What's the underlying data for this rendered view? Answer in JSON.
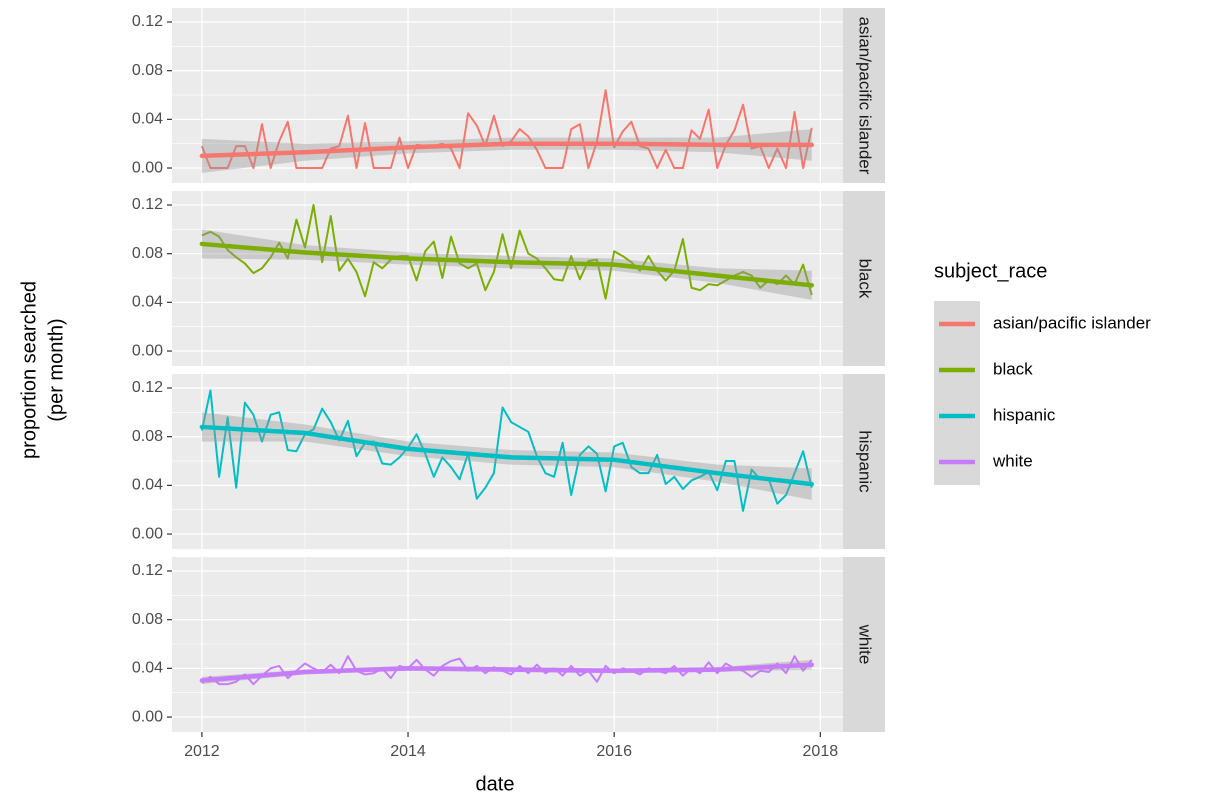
{
  "chart_data": {
    "type": "line",
    "xlabel": "date",
    "ylabel": [
      "proportion searched",
      "(per month)"
    ],
    "legend_title": "subject_race",
    "xlim": [
      2011.71,
      2018.22
    ],
    "xticks": [
      2012,
      2014,
      2016,
      2018
    ],
    "minor_xticks": [
      2013,
      2015,
      2017
    ],
    "ylim": [
      -0.0123,
      0.1315
    ],
    "yticks": [
      {
        "value": 0,
        "label": "0.00"
      },
      0.04,
      0.08,
      0.12
    ],
    "minor_yticks": [
      0.02,
      0.06,
      0.1
    ],
    "grid": true,
    "band_color": "#999999",
    "x": [
      2012,
      2012.083,
      2012.167,
      2012.25,
      2012.333,
      2012.417,
      2012.5,
      2012.583,
      2012.667,
      2012.75,
      2012.833,
      2012.917,
      2013,
      2013.083,
      2013.167,
      2013.25,
      2013.333,
      2013.417,
      2013.5,
      2013.583,
      2013.667,
      2013.75,
      2013.833,
      2013.917,
      2014,
      2014.083,
      2014.167,
      2014.25,
      2014.333,
      2014.417,
      2014.5,
      2014.583,
      2014.667,
      2014.75,
      2014.833,
      2014.917,
      2015,
      2015.083,
      2015.167,
      2015.25,
      2015.333,
      2015.417,
      2015.5,
      2015.583,
      2015.667,
      2015.75,
      2015.833,
      2015.917,
      2016,
      2016.083,
      2016.167,
      2016.25,
      2016.333,
      2016.417,
      2016.5,
      2016.583,
      2016.667,
      2016.75,
      2016.833,
      2016.917,
      2017,
      2017.083,
      2017.167,
      2017.25,
      2017.333,
      2017.417,
      2017.5,
      2017.583,
      2017.667,
      2017.75,
      2017.833,
      2017.917
    ],
    "trend_x": [
      2012,
      2013,
      2014,
      2015,
      2016,
      2017,
      2017.917
    ],
    "series": [
      {
        "name": "asian/pacific islander",
        "color": "#F8766D",
        "values": [
          0.018,
          0,
          0,
          0,
          0.018,
          0.018,
          0,
          0.036,
          0,
          0.022,
          0.038,
          0,
          0,
          0,
          0,
          0.016,
          0.018,
          0.043,
          0,
          0.037,
          0,
          0,
          0,
          0.025,
          0,
          0.019,
          0.018,
          0.018,
          0.02,
          0.016,
          0,
          0.045,
          0.035,
          0.018,
          0.043,
          0.018,
          0.022,
          0.032,
          0.026,
          0.015,
          0,
          0,
          0,
          0.032,
          0.036,
          0,
          0.022,
          0.064,
          0.017,
          0.03,
          0.038,
          0.018,
          0.016,
          0,
          0.015,
          0,
          0,
          0.031,
          0.024,
          0.048,
          0,
          0.019,
          0.031,
          0.052,
          0.016,
          0.018,
          0,
          0.016,
          0,
          0.046,
          0,
          0.033
        ],
        "trend": [
          0.01,
          0.013,
          0.017,
          0.02,
          0.02,
          0.019,
          0.019
        ],
        "trend_lower": [
          -0.004,
          0.006,
          0.012,
          0.015,
          0.015,
          0.013,
          0.006
        ],
        "trend_upper": [
          0.024,
          0.02,
          0.022,
          0.025,
          0.025,
          0.025,
          0.032
        ]
      },
      {
        "name": "black",
        "color": "#7CAE00",
        "values": [
          0.095,
          0.098,
          0.094,
          0.083,
          0.077,
          0.072,
          0.064,
          0.068,
          0.077,
          0.089,
          0.076,
          0.108,
          0.085,
          0.12,
          0.073,
          0.111,
          0.066,
          0.076,
          0.065,
          0.045,
          0.073,
          0.068,
          0.075,
          0.078,
          0.078,
          0.058,
          0.082,
          0.09,
          0.06,
          0.094,
          0.072,
          0.068,
          0.072,
          0.05,
          0.065,
          0.096,
          0.068,
          0.099,
          0.08,
          0.076,
          0.068,
          0.059,
          0.058,
          0.078,
          0.059,
          0.074,
          0.075,
          0.043,
          0.082,
          0.078,
          0.073,
          0.066,
          0.078,
          0.066,
          0.058,
          0.066,
          0.092,
          0.052,
          0.05,
          0.055,
          0.054,
          0.058,
          0.062,
          0.065,
          0.062,
          0.052,
          0.058,
          0.055,
          0.062,
          0.055,
          0.071,
          0.046
        ],
        "trend": [
          0.088,
          0.081,
          0.076,
          0.073,
          0.071,
          0.062,
          0.054
        ],
        "trend_lower": [
          0.076,
          0.075,
          0.071,
          0.068,
          0.066,
          0.056,
          0.042
        ],
        "trend_upper": [
          0.1,
          0.087,
          0.081,
          0.078,
          0.076,
          0.068,
          0.066
        ]
      },
      {
        "name": "hispanic",
        "color": "#00BFC4",
        "values": [
          0.085,
          0.118,
          0.047,
          0.096,
          0.038,
          0.108,
          0.098,
          0.076,
          0.098,
          0.1,
          0.069,
          0.068,
          0.082,
          0.086,
          0.103,
          0.092,
          0.077,
          0.093,
          0.064,
          0.075,
          0.076,
          0.058,
          0.057,
          0.063,
          0.071,
          0.082,
          0.066,
          0.047,
          0.063,
          0.055,
          0.045,
          0.066,
          0.029,
          0.038,
          0.05,
          0.104,
          0.092,
          0.088,
          0.084,
          0.064,
          0.05,
          0.047,
          0.075,
          0.032,
          0.065,
          0.072,
          0.066,
          0.035,
          0.072,
          0.075,
          0.055,
          0.05,
          0.05,
          0.065,
          0.041,
          0.047,
          0.037,
          0.044,
          0.047,
          0.051,
          0.036,
          0.06,
          0.06,
          0.019,
          0.053,
          0.045,
          0.045,
          0.025,
          0.032,
          0.05,
          0.068,
          0.038
        ],
        "trend": [
          0.088,
          0.083,
          0.07,
          0.063,
          0.061,
          0.05,
          0.041
        ],
        "trend_lower": [
          0.076,
          0.076,
          0.064,
          0.057,
          0.055,
          0.043,
          0.028
        ],
        "trend_upper": [
          0.1,
          0.09,
          0.076,
          0.069,
          0.067,
          0.057,
          0.054
        ]
      },
      {
        "name": "white",
        "color": "#C77CFF",
        "values": [
          0.028,
          0.033,
          0.027,
          0.027,
          0.029,
          0.035,
          0.027,
          0.034,
          0.04,
          0.042,
          0.032,
          0.038,
          0.044,
          0.04,
          0.037,
          0.043,
          0.036,
          0.05,
          0.038,
          0.035,
          0.036,
          0.04,
          0.032,
          0.042,
          0.04,
          0.047,
          0.039,
          0.034,
          0.042,
          0.046,
          0.048,
          0.038,
          0.042,
          0.036,
          0.041,
          0.038,
          0.035,
          0.042,
          0.036,
          0.043,
          0.036,
          0.04,
          0.034,
          0.042,
          0.034,
          0.038,
          0.029,
          0.042,
          0.036,
          0.04,
          0.038,
          0.035,
          0.04,
          0.038,
          0.036,
          0.042,
          0.034,
          0.04,
          0.036,
          0.045,
          0.036,
          0.044,
          0.04,
          0.038,
          0.033,
          0.038,
          0.037,
          0.044,
          0.036,
          0.05,
          0.038,
          0.047
        ],
        "trend": [
          0.03,
          0.037,
          0.04,
          0.039,
          0.038,
          0.039,
          0.043
        ],
        "trend_lower": [
          0.027,
          0.035,
          0.038,
          0.037,
          0.036,
          0.037,
          0.039
        ],
        "trend_upper": [
          0.033,
          0.039,
          0.042,
          0.041,
          0.04,
          0.041,
          0.047
        ]
      }
    ]
  }
}
